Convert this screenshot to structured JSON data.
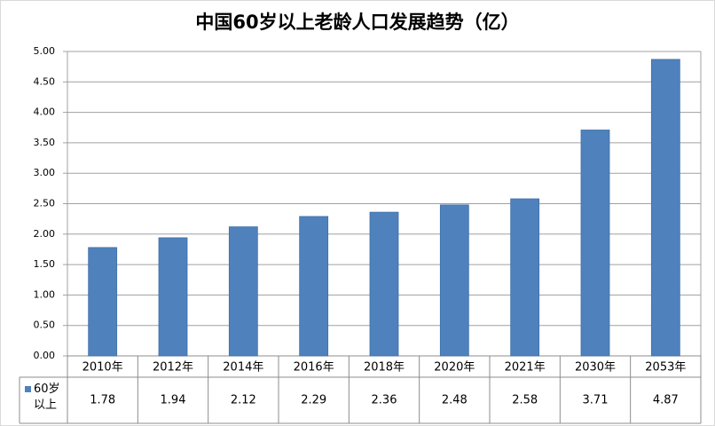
{
  "chart_data": {
    "type": "bar",
    "title": "中国60岁以上老龄人口发展趋势（亿）",
    "categories": [
      "2010年",
      "2012年",
      "2014年",
      "2016年",
      "2018年",
      "2020年",
      "2021年",
      "2030年",
      "2053年"
    ],
    "series": [
      {
        "name": "60岁以上",
        "color": "#4f81bd",
        "values": [
          1.78,
          1.94,
          2.12,
          2.29,
          2.36,
          2.48,
          2.58,
          3.71,
          4.87
        ]
      }
    ],
    "ylim": [
      0,
      5
    ],
    "yticks": [
      {
        "value": 0,
        "label": "0.00"
      },
      {
        "value": 0.5,
        "label": "0.50"
      },
      {
        "value": 1,
        "label": "1.00"
      },
      {
        "value": 1.5,
        "label": "1.50"
      },
      {
        "value": 2,
        "label": "2.00"
      },
      {
        "value": 2.5,
        "label": "2.50"
      },
      {
        "value": 3,
        "label": "3.00"
      },
      {
        "value": 3.5,
        "label": "3.50"
      },
      {
        "value": 4,
        "label": "4.00"
      },
      {
        "value": 4.5,
        "label": "4.50"
      },
      {
        "value": 5,
        "label": "5.00"
      }
    ],
    "grid": true
  }
}
